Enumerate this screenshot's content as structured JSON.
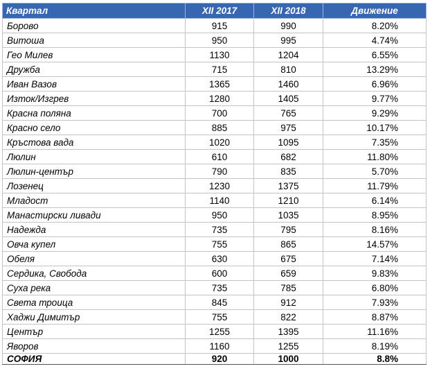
{
  "table": {
    "header_bg": "#3867B2",
    "header_text_color": "#FFFFFF",
    "columns": [
      "Квартал",
      "XII 2017",
      "XII 2018",
      "Движение"
    ],
    "rows": [
      {
        "district": "Борово",
        "v2017": "915",
        "v2018": "990",
        "change": "8.20%"
      },
      {
        "district": "Витоша",
        "v2017": "950",
        "v2018": "995",
        "change": "4.74%"
      },
      {
        "district": "Гео Милев",
        "v2017": "1130",
        "v2018": "1204",
        "change": "6.55%"
      },
      {
        "district": "Дружба",
        "v2017": "715",
        "v2018": "810",
        "change": "13.29%"
      },
      {
        "district": "Иван Вазов",
        "v2017": "1365",
        "v2018": "1460",
        "change": "6.96%"
      },
      {
        "district": "Изток/Изгрев",
        "v2017": "1280",
        "v2018": "1405",
        "change": "9.77%"
      },
      {
        "district": "Красна поляна",
        "v2017": "700",
        "v2018": "765",
        "change": "9.29%"
      },
      {
        "district": "Красно село",
        "v2017": "885",
        "v2018": "975",
        "change": "10.17%"
      },
      {
        "district": "Кръстова вада",
        "v2017": "1020",
        "v2018": "1095",
        "change": "7.35%"
      },
      {
        "district": "Люлин",
        "v2017": "610",
        "v2018": "682",
        "change": "11.80%"
      },
      {
        "district": "Люлин-център",
        "v2017": "790",
        "v2018": "835",
        "change": "5.70%"
      },
      {
        "district": "Лозенец",
        "v2017": "1230",
        "v2018": "1375",
        "change": "11.79%"
      },
      {
        "district": "Младост",
        "v2017": "1140",
        "v2018": "1210",
        "change": "6.14%"
      },
      {
        "district": "Манастирски ливади",
        "v2017": "950",
        "v2018": "1035",
        "change": "8.95%"
      },
      {
        "district": "Надежда",
        "v2017": "735",
        "v2018": "795",
        "change": "8.16%"
      },
      {
        "district": "Овча купел",
        "v2017": "755",
        "v2018": "865",
        "change": "14.57%"
      },
      {
        "district": "Обеля",
        "v2017": "630",
        "v2018": "675",
        "change": "7.14%"
      },
      {
        "district": "Сердика, Свобода",
        "v2017": "600",
        "v2018": "659",
        "change": "9.83%"
      },
      {
        "district": "Суха река",
        "v2017": "735",
        "v2018": "785",
        "change": "6.80%"
      },
      {
        "district": "Света троица",
        "v2017": "845",
        "v2018": "912",
        "change": "7.93%"
      },
      {
        "district": "Хаджи Димитър",
        "v2017": "755",
        "v2018": "822",
        "change": "8.87%"
      },
      {
        "district": "Център",
        "v2017": "1255",
        "v2018": "1395",
        "change": "11.16%"
      },
      {
        "district": "Яворов",
        "v2017": "1160",
        "v2018": "1255",
        "change": "8.19%"
      }
    ],
    "total": {
      "district": "СОФИЯ",
      "v2017": "920",
      "v2018": "1000",
      "change": "8.8%"
    }
  }
}
